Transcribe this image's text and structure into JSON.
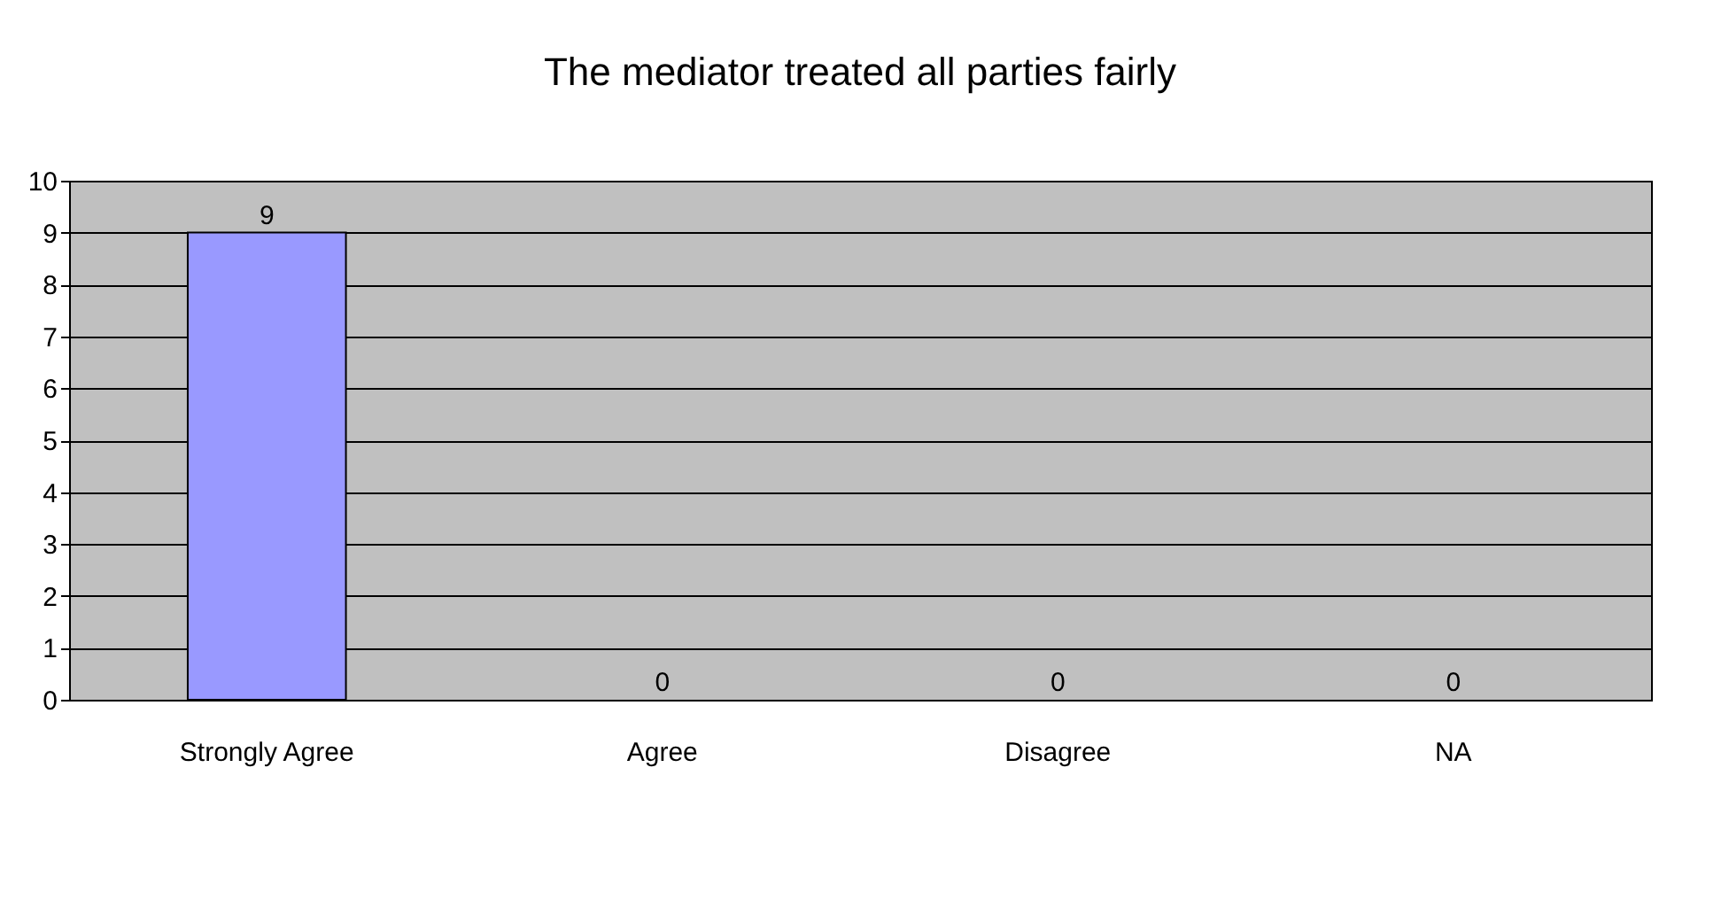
{
  "chart_data": {
    "type": "bar",
    "title": "The mediator treated all parties fairly",
    "categories": [
      "Strongly Agree",
      "Agree",
      "Disagree",
      "NA"
    ],
    "values": [
      9,
      0,
      0,
      0
    ],
    "color": "#9999ff",
    "ylim": [
      0,
      10
    ],
    "yticks": [
      0,
      1,
      2,
      3,
      4,
      5,
      6,
      7,
      8,
      9,
      10
    ],
    "grid": "y",
    "data_labels": true
  }
}
